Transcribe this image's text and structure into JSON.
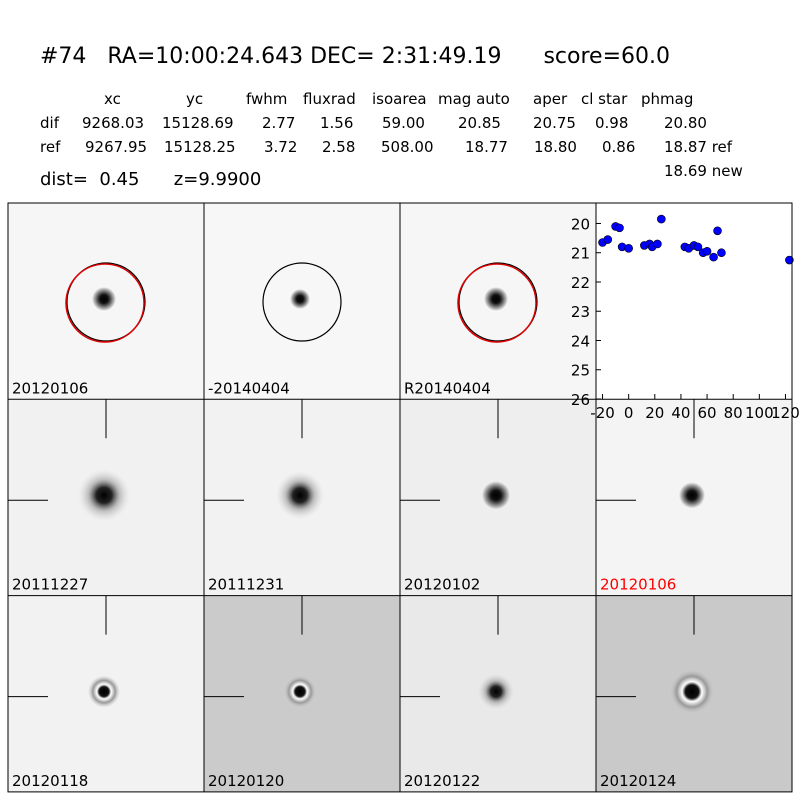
{
  "header": {
    "title": "#74   RA=10:00:24.643 DEC= 2:31:49.19      score=60.0",
    "table": {
      "columns": [
        "xc",
        "yc",
        "fwhm",
        "fluxrad",
        "isoarea",
        "mag auto",
        "aper",
        "cl star",
        "phmag"
      ],
      "rows": [
        [
          "dif",
          "9268.03",
          "15128.69",
          "2.77",
          "1.56",
          "59.00",
          "20.85",
          "20.75",
          "0.98",
          "20.80"
        ],
        [
          "ref",
          "9267.95",
          "15128.25",
          "3.72",
          "2.58",
          "508.00",
          "18.77",
          "18.80",
          "0.86",
          "18.87 ref"
        ]
      ],
      "extra": "18.69 new"
    },
    "distance": "dist=  0.45      z=9.9900"
  },
  "stamps": [
    {
      "label": "20120106"
    },
    {
      "label": "-20140404"
    },
    {
      "label": "R20140404"
    },
    {
      "label": "20111227"
    },
    {
      "label": "20111231"
    },
    {
      "label": "20120102"
    },
    {
      "label": "20120106",
      "color": "#ff0000"
    },
    {
      "label": "20120118"
    },
    {
      "label": "20120120"
    },
    {
      "label": "20120122"
    },
    {
      "label": "20120124"
    }
  ],
  "chart_data": {
    "type": "scatter",
    "color": "#0000ff",
    "x": [
      -20,
      -16,
      -10,
      -7,
      -5,
      0,
      12,
      16,
      18,
      22,
      25,
      43,
      46,
      50,
      53,
      57,
      60,
      65,
      68,
      71,
      123
    ],
    "values": [
      20.65,
      20.55,
      20.1,
      20.15,
      20.8,
      20.85,
      20.75,
      20.7,
      20.8,
      20.7,
      19.85,
      20.8,
      20.85,
      20.75,
      20.8,
      21.0,
      20.95,
      21.15,
      20.25,
      21.0,
      21.25
    ],
    "xlim": [
      -25,
      125
    ],
    "xticks": [
      -20,
      0,
      20,
      40,
      60,
      80,
      100,
      120
    ],
    "ylim": [
      26,
      19.3
    ],
    "yticks": [
      20,
      21,
      22,
      23,
      24,
      25,
      26
    ]
  }
}
